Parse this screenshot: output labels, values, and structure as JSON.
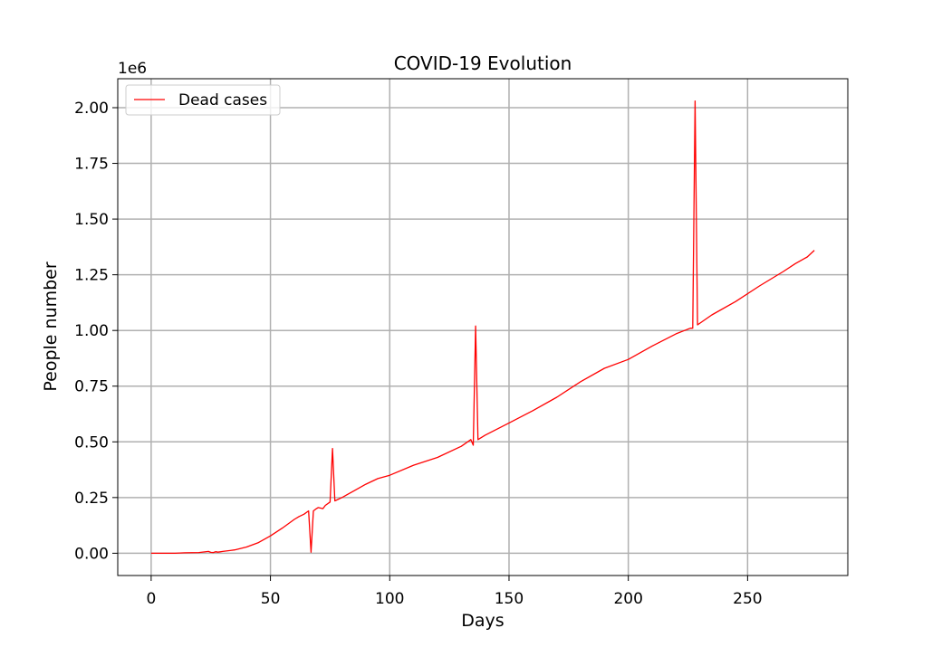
{
  "chart_data": {
    "type": "line",
    "title": "COVID-19 Evolution",
    "xlabel": "Days",
    "ylabel": "People number",
    "y_offset_label": "1e6",
    "xlim": [
      -14,
      292
    ],
    "ylim": [
      -0.1,
      2.13
    ],
    "xticks": [
      0,
      50,
      100,
      150,
      200,
      250
    ],
    "xtick_labels": [
      "0",
      "50",
      "100",
      "150",
      "200",
      "250"
    ],
    "yticks": [
      0,
      0.25,
      0.5,
      0.75,
      1.0,
      1.25,
      1.5,
      1.75,
      2.0
    ],
    "ytick_labels": [
      "0.00",
      "0.25",
      "0.50",
      "0.75",
      "1.00",
      "1.25",
      "1.50",
      "1.75",
      "2.00"
    ],
    "grid": true,
    "legend_position": "top-left",
    "series": [
      {
        "name": "Dead cases",
        "color": "#ff0000",
        "x": [
          0,
          10,
          14,
          20,
          24,
          25,
          26,
          27,
          28,
          30,
          35,
          40,
          45,
          50,
          55,
          60,
          62,
          64,
          66,
          67,
          68,
          69,
          70,
          72,
          73,
          75,
          76,
          77,
          80,
          85,
          90,
          95,
          100,
          110,
          120,
          130,
          134,
          135,
          136,
          137,
          140,
          150,
          160,
          170,
          180,
          190,
          200,
          210,
          220,
          226,
          227,
          228,
          229,
          235,
          245,
          255,
          265,
          270,
          275,
          278
        ],
        "y": [
          0.0,
          0.0,
          0.002,
          0.003,
          0.008,
          0.004,
          0.003,
          0.007,
          0.005,
          0.008,
          0.015,
          0.028,
          0.048,
          0.078,
          0.113,
          0.152,
          0.165,
          0.175,
          0.19,
          0.005,
          0.19,
          0.198,
          0.205,
          0.2,
          0.215,
          0.23,
          0.47,
          0.235,
          0.25,
          0.28,
          0.31,
          0.335,
          0.35,
          0.395,
          0.43,
          0.48,
          0.51,
          0.485,
          1.02,
          0.51,
          0.53,
          0.585,
          0.64,
          0.7,
          0.77,
          0.83,
          0.87,
          0.93,
          0.985,
          1.01,
          1.01,
          2.03,
          1.025,
          1.07,
          1.13,
          1.2,
          1.265,
          1.3,
          1.33,
          1.36
        ]
      }
    ]
  }
}
